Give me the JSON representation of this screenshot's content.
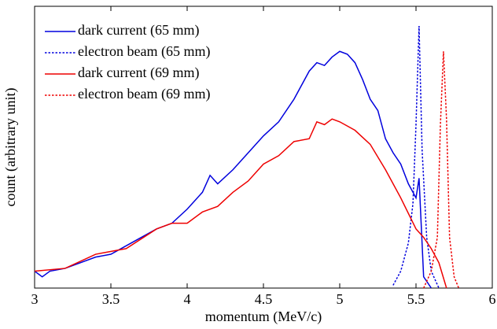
{
  "chart_data": {
    "type": "line",
    "xlabel": "momentum (MeV/c)",
    "ylabel": "count (arbitrary unit)",
    "xlim": [
      3,
      6
    ],
    "xticks": [
      3,
      3.5,
      4,
      4.5,
      5,
      5.5,
      6
    ],
    "ylim": [
      0,
      100
    ],
    "legend": "upper left",
    "series": [
      {
        "name": "dark current (65 mm)",
        "color": "#0000dd",
        "linestyle": "solid",
        "x": [
          3.0,
          3.05,
          3.1,
          3.2,
          3.3,
          3.4,
          3.5,
          3.6,
          3.7,
          3.8,
          3.9,
          4.0,
          4.1,
          4.15,
          4.2,
          4.3,
          4.4,
          4.5,
          4.6,
          4.7,
          4.75,
          4.8,
          4.85,
          4.9,
          4.95,
          5.0,
          5.05,
          5.1,
          5.15,
          5.2,
          5.25,
          5.3,
          5.35,
          5.4,
          5.45,
          5.5,
          5.52,
          5.55,
          5.6
        ],
        "values": [
          6,
          4,
          6,
          7,
          9,
          11,
          12,
          15,
          18,
          21,
          23,
          28,
          34,
          40,
          37,
          42,
          48,
          54,
          59,
          67,
          72,
          77,
          80,
          79,
          82,
          84,
          83,
          80,
          74,
          67,
          63,
          53,
          48,
          44,
          37,
          32,
          39,
          4,
          0
        ]
      },
      {
        "name": "electron beam (65 mm)",
        "color": "#0000dd",
        "linestyle": "dotted",
        "x": [
          5.35,
          5.4,
          5.45,
          5.48,
          5.5,
          5.52,
          5.54,
          5.57,
          5.6,
          5.65
        ],
        "values": [
          1,
          6,
          16,
          30,
          58,
          93,
          49,
          18,
          6,
          0
        ]
      },
      {
        "name": "dark current (69 mm)",
        "color": "#ee0000",
        "linestyle": "solid",
        "x": [
          3.0,
          3.2,
          3.4,
          3.6,
          3.8,
          3.9,
          4.0,
          4.1,
          4.2,
          4.3,
          4.4,
          4.5,
          4.6,
          4.7,
          4.8,
          4.85,
          4.9,
          4.95,
          5.0,
          5.1,
          5.2,
          5.3,
          5.4,
          5.5,
          5.55,
          5.6,
          5.65,
          5.7
        ],
        "values": [
          6,
          7,
          12,
          14,
          21,
          23,
          23,
          27,
          29,
          34,
          38,
          44,
          47,
          52,
          53,
          59,
          58,
          60,
          59,
          56,
          51,
          42,
          32,
          21,
          18,
          14,
          9,
          0
        ]
      },
      {
        "name": "electron beam (69 mm)",
        "color": "#ee0000",
        "linestyle": "dotted",
        "x": [
          5.55,
          5.6,
          5.64,
          5.66,
          5.68,
          5.7,
          5.72,
          5.75,
          5.78
        ],
        "values": [
          0,
          6,
          18,
          58,
          84,
          60,
          18,
          4,
          0
        ]
      }
    ]
  }
}
